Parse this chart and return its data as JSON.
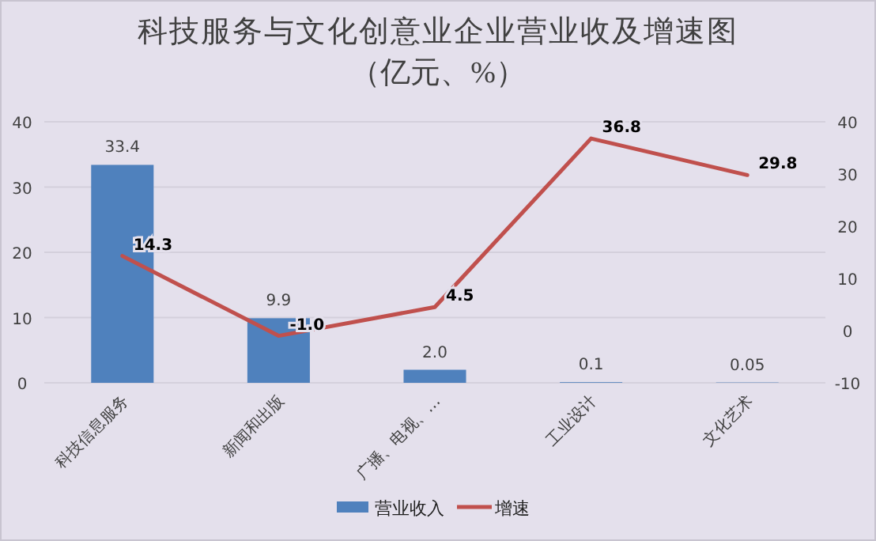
{
  "chart_data": {
    "type": "bar",
    "title": "科技服务与文化创意业企业营业收及增速图",
    "subtitle": "（亿元、%）",
    "categories": [
      "科技信息服务",
      "新闻和出版",
      "广播、电视、…",
      "工业设计",
      "文化艺术"
    ],
    "series": [
      {
        "name": "营业收入",
        "color": "#4f81bd",
        "values": [
          33.4,
          9.9,
          2.0,
          0.1,
          0.05
        ],
        "value_labels": [
          "33.4",
          "9.9",
          "2.0",
          "0.1",
          "0.05"
        ]
      },
      {
        "name": "增速",
        "type": "line",
        "axis": "y2",
        "color": "#c0504d",
        "values": [
          14.3,
          -1.0,
          4.5,
          36.8,
          29.8
        ],
        "value_labels": [
          "14.3",
          "-1.0",
          "4.5",
          "36.8",
          "29.8"
        ]
      }
    ],
    "ylim": [
      0,
      40
    ],
    "yticks": [
      0,
      10,
      20,
      30,
      40
    ],
    "y2lim": [
      -10,
      40
    ],
    "y2ticks": [
      -10,
      0,
      10,
      20,
      30,
      40
    ],
    "grid": "y",
    "legend": "bottom",
    "marker": "none"
  }
}
